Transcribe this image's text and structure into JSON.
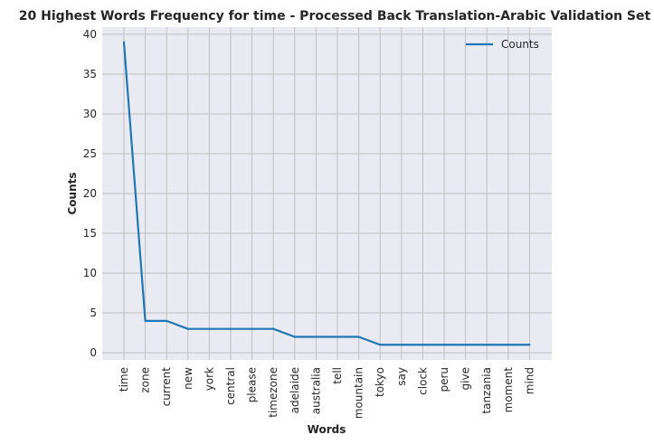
{
  "chart_data": {
    "type": "line",
    "title": "20 Highest Words Frequency for time - Processed Back Translation-Arabic Validation Set",
    "xlabel": "Words",
    "ylabel": "Counts",
    "categories": [
      "time",
      "zone",
      "current",
      "new",
      "york",
      "central",
      "please",
      "timezone",
      "adelaide",
      "australia",
      "tell",
      "mountain",
      "tokyo",
      "say",
      "clock",
      "peru",
      "give",
      "tanzania",
      "moment",
      "mind"
    ],
    "series": [
      {
        "name": "Counts",
        "values": [
          39,
          4,
          4,
          3,
          3,
          3,
          3,
          3,
          2,
          2,
          2,
          2,
          1,
          1,
          1,
          1,
          1,
          1,
          1,
          1
        ]
      }
    ],
    "ylim": [
      -0.9,
      40.9
    ],
    "yticks": [
      0,
      5,
      10,
      15,
      20,
      25,
      30,
      35,
      40
    ],
    "grid": true,
    "legend": "top-right",
    "colors": {
      "line": "#1f77b4",
      "plot_bg": "#eaeaf2",
      "grid": "#c0c0c0"
    }
  }
}
